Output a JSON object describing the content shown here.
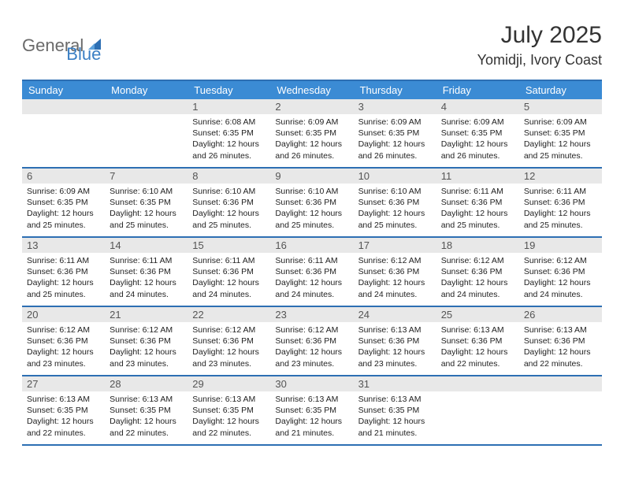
{
  "logo": {
    "part1": "General",
    "part2": "Blue"
  },
  "title": "July 2025",
  "location": "Yomidji, Ivory Coast",
  "colors": {
    "header_bg": "#3b8bd4",
    "border": "#2d6fb3",
    "daynum_bg": "#e8e8e8",
    "logo_gray": "#6a6a6a",
    "logo_blue": "#3b7fc4"
  },
  "weekdays": [
    "Sunday",
    "Monday",
    "Tuesday",
    "Wednesday",
    "Thursday",
    "Friday",
    "Saturday"
  ],
  "weeks": [
    [
      {
        "n": "",
        "sr": "",
        "ss": "",
        "dl": ""
      },
      {
        "n": "",
        "sr": "",
        "ss": "",
        "dl": ""
      },
      {
        "n": "1",
        "sr": "6:08 AM",
        "ss": "6:35 PM",
        "dl": "12 hours and 26 minutes."
      },
      {
        "n": "2",
        "sr": "6:09 AM",
        "ss": "6:35 PM",
        "dl": "12 hours and 26 minutes."
      },
      {
        "n": "3",
        "sr": "6:09 AM",
        "ss": "6:35 PM",
        "dl": "12 hours and 26 minutes."
      },
      {
        "n": "4",
        "sr": "6:09 AM",
        "ss": "6:35 PM",
        "dl": "12 hours and 26 minutes."
      },
      {
        "n": "5",
        "sr": "6:09 AM",
        "ss": "6:35 PM",
        "dl": "12 hours and 25 minutes."
      }
    ],
    [
      {
        "n": "6",
        "sr": "6:09 AM",
        "ss": "6:35 PM",
        "dl": "12 hours and 25 minutes."
      },
      {
        "n": "7",
        "sr": "6:10 AM",
        "ss": "6:35 PM",
        "dl": "12 hours and 25 minutes."
      },
      {
        "n": "8",
        "sr": "6:10 AM",
        "ss": "6:36 PM",
        "dl": "12 hours and 25 minutes."
      },
      {
        "n": "9",
        "sr": "6:10 AM",
        "ss": "6:36 PM",
        "dl": "12 hours and 25 minutes."
      },
      {
        "n": "10",
        "sr": "6:10 AM",
        "ss": "6:36 PM",
        "dl": "12 hours and 25 minutes."
      },
      {
        "n": "11",
        "sr": "6:11 AM",
        "ss": "6:36 PM",
        "dl": "12 hours and 25 minutes."
      },
      {
        "n": "12",
        "sr": "6:11 AM",
        "ss": "6:36 PM",
        "dl": "12 hours and 25 minutes."
      }
    ],
    [
      {
        "n": "13",
        "sr": "6:11 AM",
        "ss": "6:36 PM",
        "dl": "12 hours and 25 minutes."
      },
      {
        "n": "14",
        "sr": "6:11 AM",
        "ss": "6:36 PM",
        "dl": "12 hours and 24 minutes."
      },
      {
        "n": "15",
        "sr": "6:11 AM",
        "ss": "6:36 PM",
        "dl": "12 hours and 24 minutes."
      },
      {
        "n": "16",
        "sr": "6:11 AM",
        "ss": "6:36 PM",
        "dl": "12 hours and 24 minutes."
      },
      {
        "n": "17",
        "sr": "6:12 AM",
        "ss": "6:36 PM",
        "dl": "12 hours and 24 minutes."
      },
      {
        "n": "18",
        "sr": "6:12 AM",
        "ss": "6:36 PM",
        "dl": "12 hours and 24 minutes."
      },
      {
        "n": "19",
        "sr": "6:12 AM",
        "ss": "6:36 PM",
        "dl": "12 hours and 24 minutes."
      }
    ],
    [
      {
        "n": "20",
        "sr": "6:12 AM",
        "ss": "6:36 PM",
        "dl": "12 hours and 23 minutes."
      },
      {
        "n": "21",
        "sr": "6:12 AM",
        "ss": "6:36 PM",
        "dl": "12 hours and 23 minutes."
      },
      {
        "n": "22",
        "sr": "6:12 AM",
        "ss": "6:36 PM",
        "dl": "12 hours and 23 minutes."
      },
      {
        "n": "23",
        "sr": "6:12 AM",
        "ss": "6:36 PM",
        "dl": "12 hours and 23 minutes."
      },
      {
        "n": "24",
        "sr": "6:13 AM",
        "ss": "6:36 PM",
        "dl": "12 hours and 23 minutes."
      },
      {
        "n": "25",
        "sr": "6:13 AM",
        "ss": "6:36 PM",
        "dl": "12 hours and 22 minutes."
      },
      {
        "n": "26",
        "sr": "6:13 AM",
        "ss": "6:36 PM",
        "dl": "12 hours and 22 minutes."
      }
    ],
    [
      {
        "n": "27",
        "sr": "6:13 AM",
        "ss": "6:35 PM",
        "dl": "12 hours and 22 minutes."
      },
      {
        "n": "28",
        "sr": "6:13 AM",
        "ss": "6:35 PM",
        "dl": "12 hours and 22 minutes."
      },
      {
        "n": "29",
        "sr": "6:13 AM",
        "ss": "6:35 PM",
        "dl": "12 hours and 22 minutes."
      },
      {
        "n": "30",
        "sr": "6:13 AM",
        "ss": "6:35 PM",
        "dl": "12 hours and 21 minutes."
      },
      {
        "n": "31",
        "sr": "6:13 AM",
        "ss": "6:35 PM",
        "dl": "12 hours and 21 minutes."
      },
      {
        "n": "",
        "sr": "",
        "ss": "",
        "dl": ""
      },
      {
        "n": "",
        "sr": "",
        "ss": "",
        "dl": ""
      }
    ]
  ],
  "labels": {
    "sunrise": "Sunrise:",
    "sunset": "Sunset:",
    "daylight": "Daylight:"
  }
}
